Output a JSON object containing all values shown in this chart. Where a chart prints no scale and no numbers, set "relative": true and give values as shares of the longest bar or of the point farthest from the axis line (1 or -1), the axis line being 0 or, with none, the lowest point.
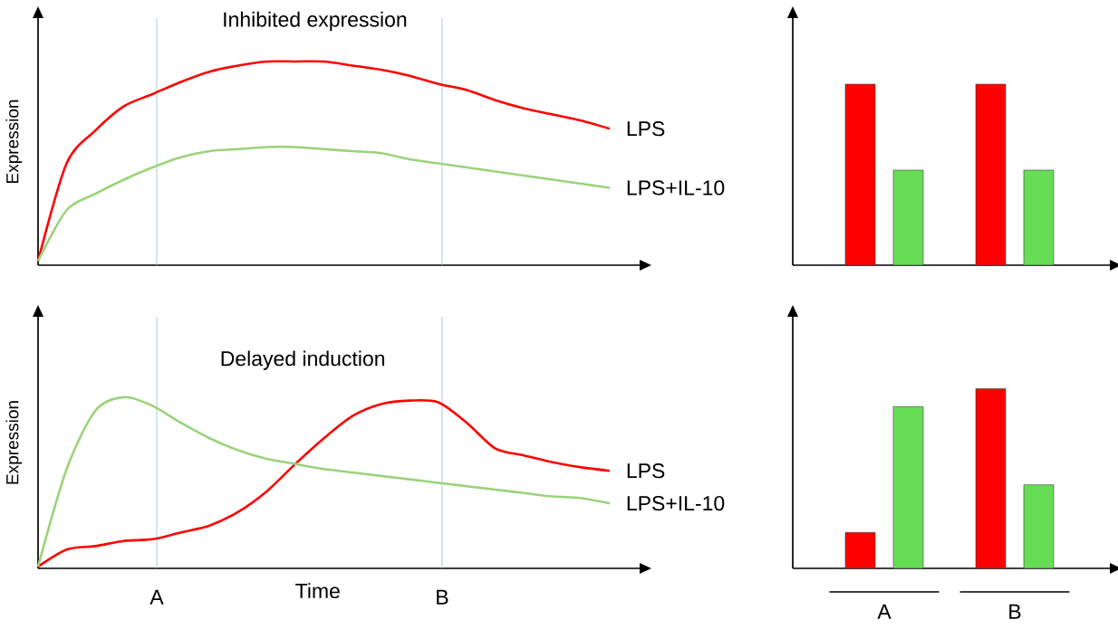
{
  "chart_data": [
    {
      "type": "line",
      "title": "Inhibited expression",
      "ylabel": "Expression",
      "relative": true,
      "tick_labels": false,
      "categories": [
        null,
        null,
        null,
        null,
        null,
        null,
        null,
        null,
        null,
        null,
        null,
        null,
        null,
        null,
        null,
        null,
        null,
        null,
        null,
        null,
        null
      ],
      "series": [
        {
          "name": "LPS",
          "color": "#ff0000",
          "values": [
            0.02,
            0.5,
            0.66,
            0.78,
            0.84,
            0.9,
            0.95,
            0.98,
            1.0,
            1.0,
            1.0,
            0.98,
            0.96,
            0.93,
            0.89,
            0.86,
            0.81,
            0.77,
            0.74,
            0.71,
            0.67
          ]
        },
        {
          "name": "LPS+IL-10",
          "color": "#9bd37b",
          "values": [
            0.02,
            0.27,
            0.35,
            0.42,
            0.48,
            0.53,
            0.56,
            0.57,
            0.58,
            0.58,
            0.57,
            0.56,
            0.55,
            0.52,
            0.5,
            0.48,
            0.46,
            0.44,
            0.42,
            0.4,
            0.38
          ]
        }
      ]
    },
    {
      "type": "bar",
      "relative": true,
      "tick_labels": false,
      "categories": [
        null,
        null
      ],
      "series": [
        {
          "color": "#ff0000",
          "values": [
            1.0,
            1.0
          ]
        },
        {
          "color": "#66dd55",
          "values": [
            0.525,
            0.525
          ]
        }
      ]
    },
    {
      "type": "line",
      "title": "Delayed induction",
      "xlabel": "Time",
      "ylabel": "Expression",
      "relative": true,
      "tick_labels": false,
      "annotations": [
        "A",
        "B"
      ],
      "categories": [
        null,
        null,
        null,
        null,
        null,
        null,
        null,
        null,
        null,
        null,
        null,
        null,
        null,
        null,
        null,
        null,
        null,
        null,
        null,
        null,
        null
      ],
      "series": [
        {
          "name": "LPS",
          "color": "#ff0000",
          "values": [
            0.01,
            0.11,
            0.13,
            0.16,
            0.17,
            0.21,
            0.25,
            0.33,
            0.45,
            0.61,
            0.76,
            0.89,
            0.96,
            0.98,
            0.97,
            0.85,
            0.7,
            0.66,
            0.62,
            0.59,
            0.57
          ]
        },
        {
          "name": "LPS+IL-10",
          "color": "#9bd37b",
          "values": [
            0.01,
            0.58,
            0.92,
            1.0,
            0.95,
            0.85,
            0.76,
            0.69,
            0.64,
            0.61,
            0.58,
            0.56,
            0.54,
            0.52,
            0.5,
            0.48,
            0.46,
            0.44,
            0.42,
            0.41,
            0.38
          ]
        }
      ]
    },
    {
      "type": "bar",
      "relative": true,
      "tick_labels": "x",
      "categories": [
        "A",
        "B"
      ],
      "series": [
        {
          "color": "#ff0000",
          "values": [
            0.2,
            1.0
          ]
        },
        {
          "color": "#66dd55",
          "values": [
            0.9,
            0.465
          ]
        }
      ]
    }
  ]
}
